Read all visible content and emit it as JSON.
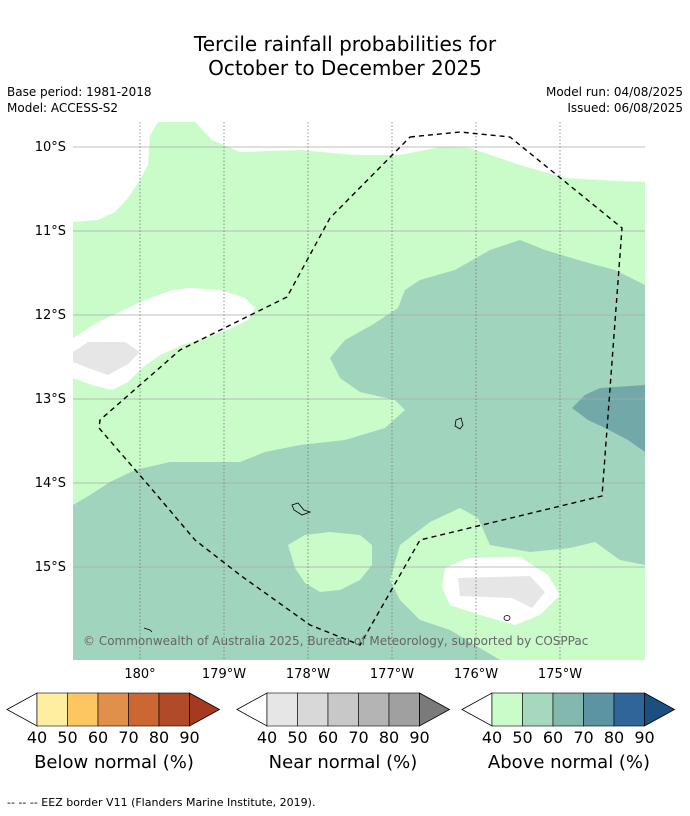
{
  "title_line1": "Tercile rainfall probabilities for",
  "title_line2": "October to December 2025",
  "base_period": "Base period: 1981-2018",
  "model": "Model: ACCESS-S2",
  "model_run": "Model run: 04/08/2025",
  "issued": "Issued: 06/08/2025",
  "lat_labels": [
    "10°S",
    "11°S",
    "12°S",
    "13°S",
    "14°S",
    "15°S"
  ],
  "lon_labels": [
    "180°",
    "179°W",
    "178°W",
    "177°W",
    "176°W",
    "175°W"
  ],
  "copyright": "© Commonwealth of Australia 2025, Bureau of Meteorology, supported by COSPPac",
  "legends": [
    {
      "title": "Below normal (%)",
      "ticks": [
        "40",
        "50",
        "60",
        "70",
        "80",
        "90"
      ],
      "colors": [
        "#ffffff",
        "#ffeda0",
        "#fec660",
        "#e0904a",
        "#cc6633",
        "#b04a28",
        "#a63a20"
      ]
    },
    {
      "title": "Near normal (%)",
      "ticks": [
        "40",
        "50",
        "60",
        "70",
        "80",
        "90"
      ],
      "colors": [
        "#ffffff",
        "#e6e6e6",
        "#d8d8d8",
        "#c8c8c8",
        "#b4b4b4",
        "#a0a0a0",
        "#7a7a7a"
      ]
    },
    {
      "title": "Above normal (%)",
      "ticks": [
        "40",
        "50",
        "60",
        "70",
        "80",
        "90"
      ],
      "colors": [
        "#ffffff",
        "#c9fcc9",
        "#a6d8bd",
        "#82b8ad",
        "#5c94a4",
        "#30659a",
        "#1b4f80"
      ]
    }
  ],
  "eez_note": "--  --  -- EEZ border V11 (Flanders Marine Institute, 2019).",
  "colors": {
    "above_40_50": "#c9fcc9",
    "above_50_60": "#a0d4bc",
    "above_60_70": "#72a8a8",
    "near_40_50": "#e6e6e6",
    "grid": "#999999"
  }
}
